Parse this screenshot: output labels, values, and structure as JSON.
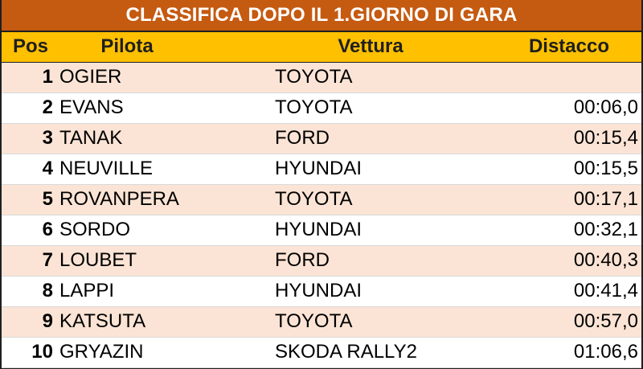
{
  "title": "CLASSIFICA DOPO IL 1.GIORNO DI GARA",
  "headers": {
    "pos": "Pos",
    "pilot": "Pilota",
    "car": "Vettura",
    "gap": "Distacco"
  },
  "rows": [
    {
      "pos": "1",
      "pilot": "OGIER",
      "car": "TOYOTA",
      "gap": ""
    },
    {
      "pos": "2",
      "pilot": "EVANS",
      "car": "TOYOTA",
      "gap": "00:06,0"
    },
    {
      "pos": "3",
      "pilot": "TANAK",
      "car": "FORD",
      "gap": "00:15,4"
    },
    {
      "pos": "4",
      "pilot": "NEUVILLE",
      "car": "HYUNDAI",
      "gap": "00:15,5"
    },
    {
      "pos": "5",
      "pilot": "ROVANPERA",
      "car": "TOYOTA",
      "gap": "00:17,1"
    },
    {
      "pos": "6",
      "pilot": "SORDO",
      "car": "HYUNDAI",
      "gap": "00:32,1"
    },
    {
      "pos": "7",
      "pilot": "LOUBET",
      "car": "FORD",
      "gap": "00:40,3"
    },
    {
      "pos": "8",
      "pilot": "LAPPI",
      "car": "HYUNDAI",
      "gap": "00:41,4"
    },
    {
      "pos": "9",
      "pilot": "KATSUTA",
      "car": "TOYOTA",
      "gap": "00:57,0"
    },
    {
      "pos": "10",
      "pilot": "GRYAZIN",
      "car": "SKODA RALLY2",
      "gap": "01:06,6"
    }
  ],
  "colors": {
    "title_bg": "#c55a11",
    "header_bg": "#ffc000",
    "odd_row_bg": "#fbe4d5",
    "even_row_bg": "#ffffff"
  }
}
